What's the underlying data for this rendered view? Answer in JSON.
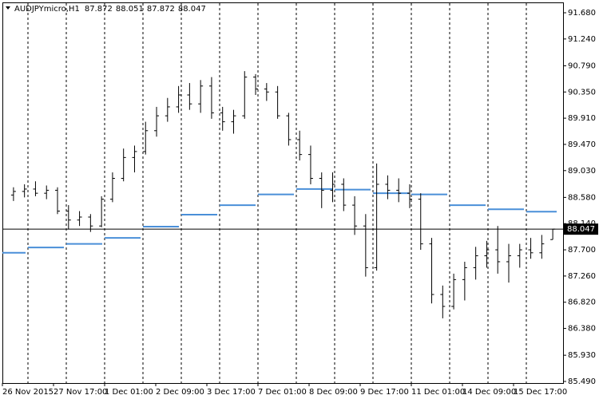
{
  "chart_data": {
    "type": "ohlc",
    "symbol": "AUDJPYmicro,H1",
    "color": "#000000",
    "level_color": "#4a8fd8",
    "grid": true,
    "ylim": [
      85.49,
      91.68
    ],
    "yticks": [
      {
        "value": 91.68,
        "label": "91.680"
      },
      {
        "value": 91.24,
        "label": "91.240"
      },
      {
        "value": 90.79,
        "label": "90.790"
      },
      {
        "value": 90.35,
        "label": "90.350"
      },
      {
        "value": 89.91,
        "label": "89.910"
      },
      {
        "value": 89.47,
        "label": "89.470"
      },
      {
        "value": 89.03,
        "label": "89.030"
      },
      {
        "value": 88.58,
        "label": "88.580"
      },
      {
        "value": 88.14,
        "label": "88.140"
      },
      {
        "value": 87.7,
        "label": "87.700"
      },
      {
        "value": 87.26,
        "label": "87.260"
      },
      {
        "value": 86.82,
        "label": "86.820"
      },
      {
        "value": 86.38,
        "label": "86.380"
      },
      {
        "value": 85.93,
        "label": "85.930"
      },
      {
        "value": 85.49,
        "label": "85.490"
      }
    ],
    "x_labels": [
      "26 Nov 2015",
      "27 Nov 17:00",
      "1 Dec 01:00",
      "2 Dec 09:00",
      "3 Dec 17:00",
      "7 Dec 01:00",
      "8 Dec 09:00",
      "9 Dec 17:00",
      "11 Dec 01:00",
      "14 Dec 09:00",
      "15 Dec 17:00"
    ],
    "open": [
      88.62,
      88.68,
      88.72,
      88.65,
      88.7,
      88.35,
      88.2,
      88.25,
      88.1,
      88.55,
      88.9,
      89.25,
      89.35,
      89.7,
      89.95,
      90.1,
      90.3,
      90.15,
      90.45,
      90.0,
      89.85,
      89.95,
      90.6,
      90.4,
      90.35,
      89.95,
      89.55,
      89.3,
      88.9,
      88.7,
      88.8,
      88.45,
      88.1,
      87.4,
      88.8,
      88.7,
      88.65,
      88.55,
      87.8,
      86.95,
      86.75,
      87.2,
      87.4,
      87.6,
      87.7,
      87.5,
      87.6,
      87.7,
      87.65,
      87.872
    ],
    "high": [
      88.75,
      88.8,
      88.85,
      88.78,
      88.75,
      88.45,
      88.35,
      88.3,
      88.6,
      89.0,
      89.4,
      89.45,
      89.85,
      90.1,
      90.25,
      90.45,
      90.5,
      90.55,
      90.6,
      90.1,
      90.05,
      90.7,
      90.65,
      90.5,
      90.45,
      90.0,
      89.7,
      89.45,
      89.0,
      89.0,
      88.9,
      88.6,
      88.3,
      89.15,
      88.95,
      88.9,
      88.8,
      88.65,
      87.9,
      87.1,
      87.3,
      87.5,
      87.75,
      87.85,
      88.1,
      87.8,
      87.8,
      87.9,
      87.95,
      88.051
    ],
    "low": [
      88.52,
      88.58,
      88.6,
      88.55,
      88.3,
      88.05,
      88.1,
      88.0,
      88.08,
      88.5,
      88.85,
      89.0,
      89.3,
      89.6,
      89.85,
      90.0,
      90.05,
      90.0,
      89.9,
      89.7,
      89.65,
      89.9,
      90.3,
      90.2,
      89.9,
      89.45,
      89.2,
      88.8,
      88.4,
      88.5,
      88.35,
      87.95,
      87.25,
      87.35,
      88.55,
      88.5,
      88.4,
      87.7,
      86.8,
      86.55,
      86.7,
      86.85,
      87.2,
      87.4,
      87.3,
      87.15,
      87.4,
      87.55,
      87.55,
      87.872
    ],
    "close": [
      88.68,
      88.72,
      88.65,
      88.7,
      88.35,
      88.2,
      88.25,
      88.1,
      88.55,
      88.9,
      89.25,
      89.35,
      89.7,
      89.95,
      90.1,
      90.3,
      90.15,
      90.45,
      90.0,
      89.85,
      89.95,
      90.6,
      90.4,
      90.35,
      89.95,
      89.55,
      89.3,
      88.9,
      88.7,
      88.8,
      88.45,
      88.1,
      87.4,
      88.8,
      88.7,
      88.65,
      88.55,
      87.8,
      86.95,
      86.75,
      87.2,
      87.4,
      87.6,
      87.7,
      87.5,
      87.6,
      87.7,
      87.65,
      87.8,
      88.047
    ],
    "levels": [
      87.65,
      87.74,
      87.8,
      87.9,
      88.09,
      88.29,
      88.45,
      88.63,
      88.72,
      88.71,
      88.65,
      88.63,
      88.45,
      88.38,
      88.34
    ]
  }
}
